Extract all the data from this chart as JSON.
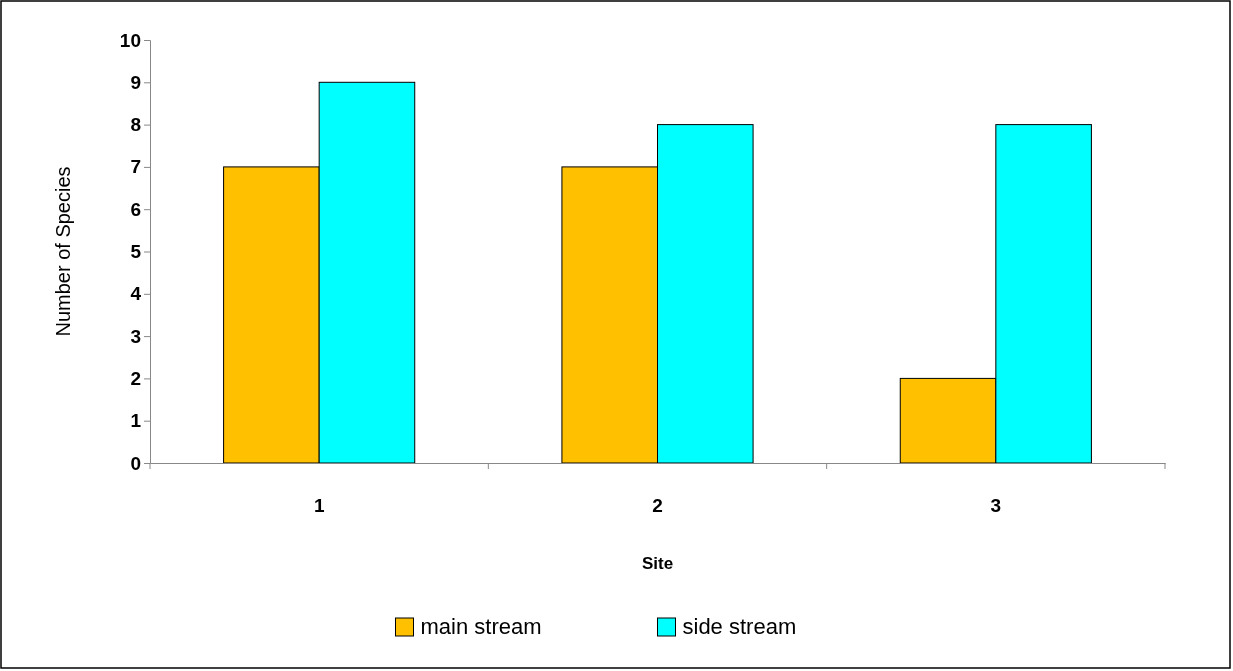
{
  "chart_data": {
    "type": "bar",
    "xlabel": "Site",
    "ylabel": "Number of Species",
    "categories": [
      "1",
      "2",
      "3"
    ],
    "series": [
      {
        "name": "main stream",
        "color": "#ffc000",
        "values": [
          7,
          7,
          2
        ]
      },
      {
        "name": "side stream",
        "color": "#00ffff",
        "values": [
          9,
          8,
          8
        ]
      }
    ],
    "ylim": [
      0,
      10
    ],
    "yticks": [
      0,
      1,
      2,
      3,
      4,
      5,
      6,
      7,
      8,
      9,
      10
    ],
    "grid": false,
    "legend": "bottom"
  }
}
